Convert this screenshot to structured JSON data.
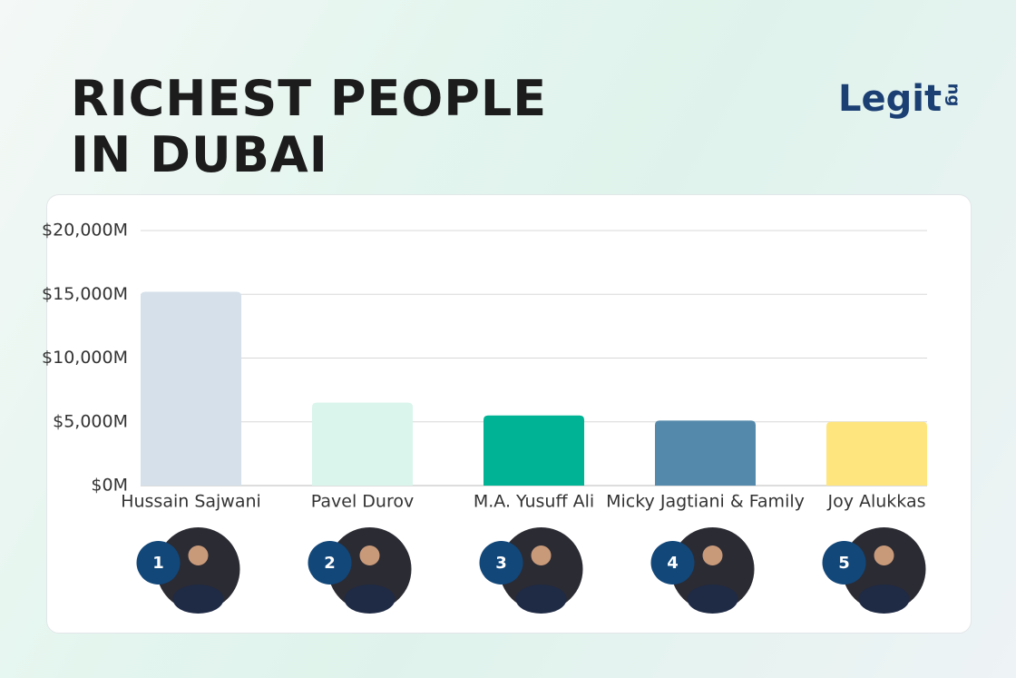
{
  "chart_data": {
    "type": "bar",
    "title": "RICHEST PEOPLE IN DUBAI",
    "logo": {
      "text": "Legit",
      "suffix": "ng"
    },
    "categories": [
      "Hussain Sajwani",
      "Pavel Durov",
      "M.A. Yusuff Ali",
      "Micky Jagtiani & Family",
      "Joy Alukkas"
    ],
    "values": [
      15200,
      6500,
      5500,
      5100,
      5000
    ],
    "colors": [
      "#d5e0ea",
      "#d9f5ec",
      "#00b394",
      "#5589ab",
      "#fee57e"
    ],
    "ranks": [
      1,
      2,
      3,
      4,
      5
    ],
    "ylim": [
      0,
      20000
    ],
    "yticks": [
      {
        "value": 0,
        "label": "$0M"
      },
      {
        "value": 5000,
        "label": "$5,000M"
      },
      {
        "value": 10000,
        "label": "$10,000M"
      },
      {
        "value": 15000,
        "label": "$15,000M"
      },
      {
        "value": 20000,
        "label": "$20,000M"
      }
    ],
    "grid": true
  }
}
